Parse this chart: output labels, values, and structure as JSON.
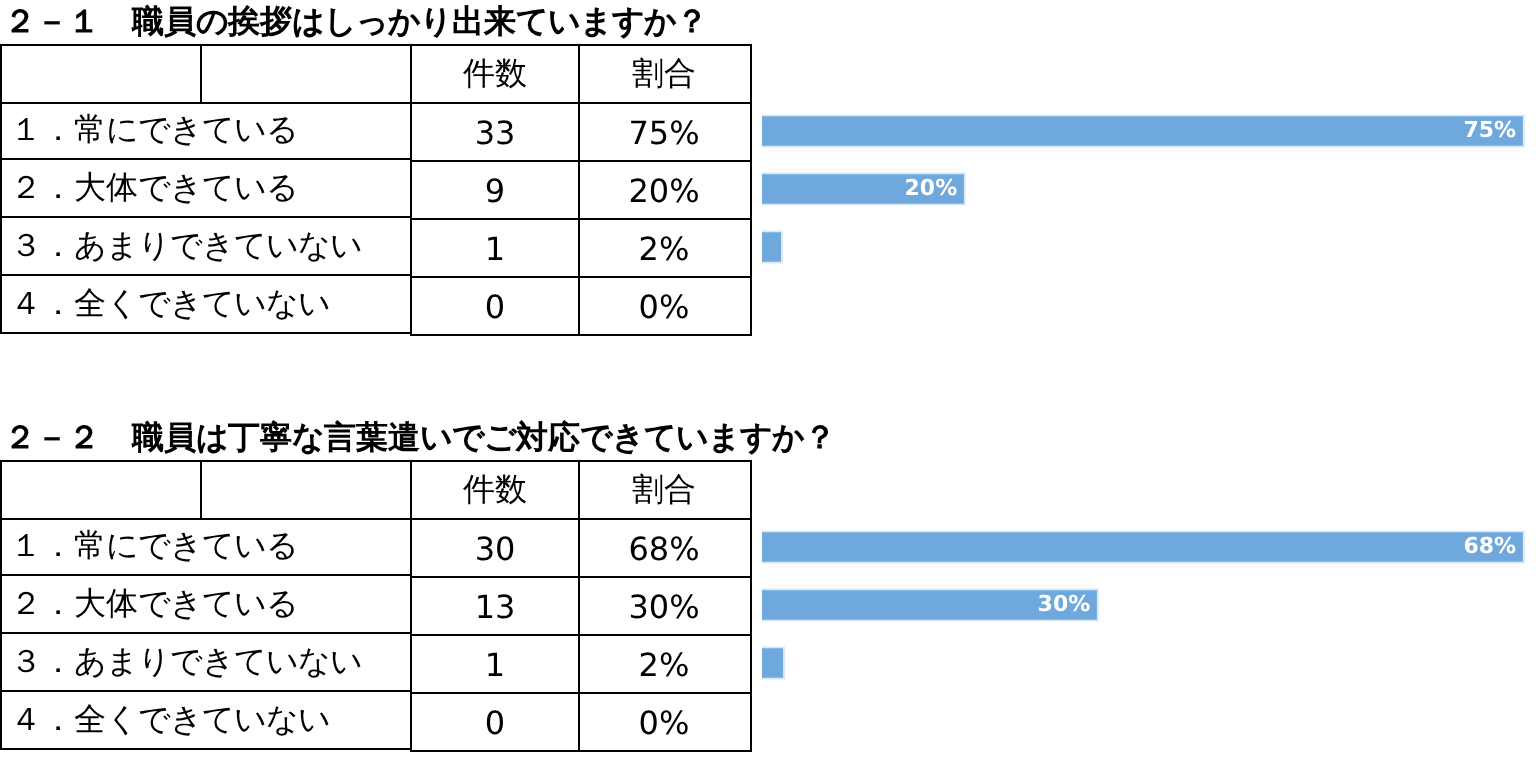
{
  "chart_data": [
    {
      "type": "other",
      "title": "２－１　職員の挨拶はしっかり出来ていますか？",
      "series": [
        {
          "name": "件数",
          "values": [
            33,
            9,
            1,
            0
          ]
        }
      ],
      "data_labels": true
    },
    {
      "type": "bar",
      "orientation": "horizontal",
      "categories": [
        "１．常にできている",
        "２．大体できている",
        "３．あまりできていない",
        "４．全くできていない"
      ],
      "series": [
        {
          "name": "割合",
          "color": "#6fa8dc",
          "values": [
            75,
            20,
            2,
            0
          ],
          "value_labels": [
            "75%",
            "20%",
            "2%",
            "0%"
          ]
        }
      ],
      "tick_labels": false
    },
    {
      "type": "other",
      "title": "２－２　職員は丁寧な言葉遣いでご対応できていますか？",
      "series": [
        {
          "name": "件数",
          "values": [
            30,
            13,
            1,
            0
          ]
        }
      ],
      "data_labels": true
    },
    {
      "type": "bar",
      "orientation": "horizontal",
      "categories": [
        "１．常にできている",
        "２．大体できている",
        "３．あまりできていない",
        "４．全くできていない"
      ],
      "series": [
        {
          "name": "割合",
          "color": "#6fa8dc",
          "values": [
            68,
            30,
            2,
            0
          ],
          "value_labels": [
            "68%",
            "30%",
            "2%",
            "0%"
          ]
        }
      ],
      "tick_labels": false
    }
  ]
}
